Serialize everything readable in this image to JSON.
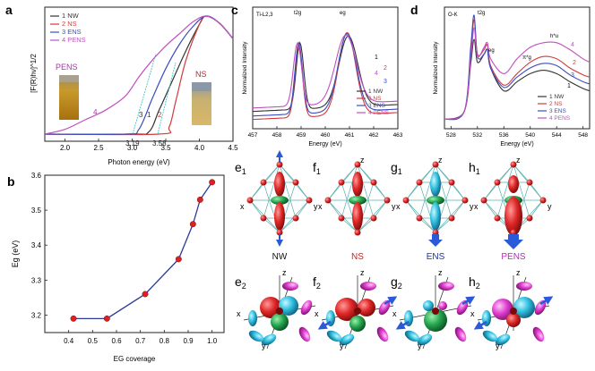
{
  "chart_data": [
    {
      "panel": "a",
      "type": "line",
      "xlabel": "Photon energy (eV)",
      "ylabel": "[F(R)hν]^1/2",
      "xlim": [
        1.7,
        4.5
      ],
      "ylim": [
        0,
        1
      ],
      "xticks": [
        "2.0",
        "2.5",
        "3.0",
        "3.5",
        "4.0",
        "4.5"
      ],
      "legend": [
        "1 NW",
        "2 NS",
        "3 ENS",
        "4 PENS"
      ],
      "series": [
        {
          "name": "1 NW",
          "color": "#333333",
          "x": [
            1.7,
            3.0,
            3.25,
            3.4,
            3.6,
            3.8,
            4.0,
            4.1,
            4.3,
            4.5
          ],
          "y": [
            0.0,
            0.0,
            0.02,
            0.2,
            0.45,
            0.7,
            0.92,
            0.99,
            0.93,
            0.8
          ]
        },
        {
          "name": "2 NS",
          "color": "#d23b3b",
          "x": [
            1.7,
            3.4,
            3.55,
            3.65,
            3.8,
            4.0,
            4.1,
            4.3,
            4.5
          ],
          "y": [
            0.0,
            0.0,
            0.06,
            0.28,
            0.62,
            0.92,
            0.99,
            0.93,
            0.8
          ]
        },
        {
          "name": "3 ENS",
          "color": "#3b4cc0",
          "x": [
            1.7,
            2.9,
            3.1,
            3.3,
            3.5,
            3.7,
            3.9,
            4.1,
            4.3,
            4.5
          ],
          "y": [
            0.0,
            0.0,
            0.04,
            0.3,
            0.55,
            0.75,
            0.9,
            0.99,
            0.93,
            0.8
          ]
        },
        {
          "name": "4 PENS",
          "color": "#c050c0",
          "x": [
            1.7,
            2.0,
            2.3,
            2.6,
            2.9,
            3.1,
            3.3,
            3.5,
            3.7,
            3.9,
            4.1,
            4.3,
            4.5
          ],
          "y": [
            0.0,
            0.04,
            0.12,
            0.2,
            0.32,
            0.48,
            0.62,
            0.74,
            0.84,
            0.94,
            0.99,
            0.93,
            0.8
          ]
        }
      ],
      "curve_labels": [
        "4",
        "3",
        "1",
        "2"
      ],
      "annotations": [
        "3.19",
        "3.58"
      ],
      "insets": [
        "PENS",
        "NS"
      ]
    },
    {
      "panel": "b",
      "type": "line",
      "xlabel": "EG coverage",
      "ylabel": "Eg (eV)",
      "xlim": [
        0.3,
        1.05
      ],
      "ylim": [
        3.15,
        3.6
      ],
      "xticks": [
        "0.4",
        "0.5",
        "0.6",
        "0.7",
        "0.8",
        "0.9",
        "1.0"
      ],
      "yticks": [
        "3.2",
        "3.3",
        "3.4",
        "3.5",
        "3.6"
      ],
      "x": [
        0.42,
        0.56,
        0.72,
        0.86,
        0.92,
        0.95,
        1.0
      ],
      "y": [
        3.19,
        3.19,
        3.26,
        3.36,
        3.46,
        3.53,
        3.58
      ],
      "line_color": "#2b3a9a",
      "marker_color": "#e02020"
    },
    {
      "panel": "c",
      "type": "line",
      "inner_label": "Ti-L2,3",
      "xlabel": "Energy (eV)",
      "ylabel": "Normalized Intensity",
      "xlim": [
        457,
        463
      ],
      "xticks": [
        "457",
        "458",
        "459",
        "460",
        "461",
        "462",
        "463"
      ],
      "peak_labels": [
        "t2g",
        "eg"
      ],
      "curve_labels": [
        "1",
        "2",
        "3",
        "4"
      ],
      "legend": [
        "1 NW",
        "2 NS",
        "3 ENS",
        "4 PENS"
      ],
      "peaks": [
        {
          "name": "1 NW",
          "color": "#333333",
          "base": 0.12,
          "a1": 0.58,
          "c1": 458.95,
          "w1": 0.22,
          "a2": 0.62,
          "c2": 460.95,
          "w2": 0.55
        },
        {
          "name": "2 NS",
          "color": "#d23b3b",
          "base": 0.05,
          "a1": 0.62,
          "c1": 458.9,
          "w1": 0.22,
          "a2": 0.72,
          "c2": 460.9,
          "w2": 0.5
        },
        {
          "name": "3 ENS",
          "color": "#3b4cc0",
          "base": 0.08,
          "a1": 0.62,
          "c1": 458.9,
          "w1": 0.22,
          "a2": 0.68,
          "c2": 460.9,
          "w2": 0.52
        },
        {
          "name": "4 PENS",
          "color": "#c050c0",
          "base": 0.15,
          "a1": 0.55,
          "c1": 458.85,
          "w1": 0.24,
          "a2": 0.6,
          "c2": 460.85,
          "w2": 0.6
        }
      ]
    },
    {
      "panel": "d",
      "type": "line",
      "inner_label": "O-K",
      "xlabel": "Energy (eV)",
      "ylabel": "Normalized Intensity",
      "xlim": [
        527,
        549
      ],
      "xticks": [
        "528",
        "532",
        "536",
        "540",
        "544",
        "548"
      ],
      "peak_labels": [
        "t2g",
        "eg",
        "π*g",
        "h*u"
      ],
      "curve_labels": [
        "4",
        "2",
        "3",
        "1"
      ],
      "legend": [
        "1 NW",
        "2 NS",
        "3 ENS",
        "4 PENS"
      ],
      "series": [
        {
          "name": "1 NW",
          "color": "#333333",
          "x": [
            527,
            530,
            531,
            531.5,
            532,
            533,
            533.5,
            534,
            536,
            538,
            540,
            542,
            544,
            546,
            548,
            549
          ],
          "y": [
            0.05,
            0.12,
            0.55,
            0.75,
            0.55,
            0.62,
            0.66,
            0.5,
            0.3,
            0.38,
            0.45,
            0.48,
            0.45,
            0.38,
            0.32,
            0.3
          ]
        },
        {
          "name": "2 NS",
          "color": "#d23b3b",
          "x": [
            527,
            530,
            531,
            531.5,
            532,
            533,
            533.5,
            534,
            536,
            538,
            540,
            542,
            544,
            546,
            548,
            549
          ],
          "y": [
            0.05,
            0.12,
            0.65,
            0.92,
            0.62,
            0.66,
            0.7,
            0.52,
            0.35,
            0.45,
            0.55,
            0.6,
            0.58,
            0.5,
            0.44,
            0.42
          ]
        },
        {
          "name": "3 ENS",
          "color": "#3b4cc0",
          "x": [
            527,
            530,
            531,
            531.5,
            532,
            533,
            533.5,
            534,
            536,
            538,
            540,
            542,
            544,
            546,
            548,
            549
          ],
          "y": [
            0.05,
            0.12,
            0.7,
            0.96,
            0.6,
            0.62,
            0.66,
            0.5,
            0.33,
            0.42,
            0.5,
            0.54,
            0.52,
            0.44,
            0.38,
            0.36
          ]
        },
        {
          "name": "4 PENS",
          "color": "#c050c0",
          "x": [
            527,
            530,
            531,
            531.5,
            532,
            533,
            533.5,
            534,
            536,
            538,
            540,
            542,
            544,
            546,
            548,
            549
          ],
          "y": [
            0.05,
            0.12,
            0.6,
            0.85,
            0.6,
            0.68,
            0.72,
            0.58,
            0.45,
            0.58,
            0.68,
            0.72,
            0.72,
            0.66,
            0.58,
            0.55
          ]
        }
      ]
    }
  ],
  "panels": {
    "a": {
      "label": "a"
    },
    "b": {
      "label": "b"
    },
    "c": {
      "label": "c"
    },
    "d": {
      "label": "d"
    }
  },
  "models": {
    "row1": [
      {
        "label": "e",
        "sub": "1",
        "name": "NW",
        "name_color": "#111111"
      },
      {
        "label": "f",
        "sub": "1",
        "name": "NS",
        "name_color": "#d02020"
      },
      {
        "label": "g",
        "sub": "1",
        "name": "ENS",
        "name_color": "#2030a0"
      },
      {
        "label": "h",
        "sub": "1",
        "name": "PENS",
        "name_color": "#b030b0"
      }
    ],
    "row2": [
      {
        "label": "e",
        "sub": "2"
      },
      {
        "label": "f",
        "sub": "2"
      },
      {
        "label": "g",
        "sub": "2"
      },
      {
        "label": "h",
        "sub": "2"
      }
    ],
    "axes": {
      "x": "x",
      "y": "y",
      "z": "z"
    }
  }
}
